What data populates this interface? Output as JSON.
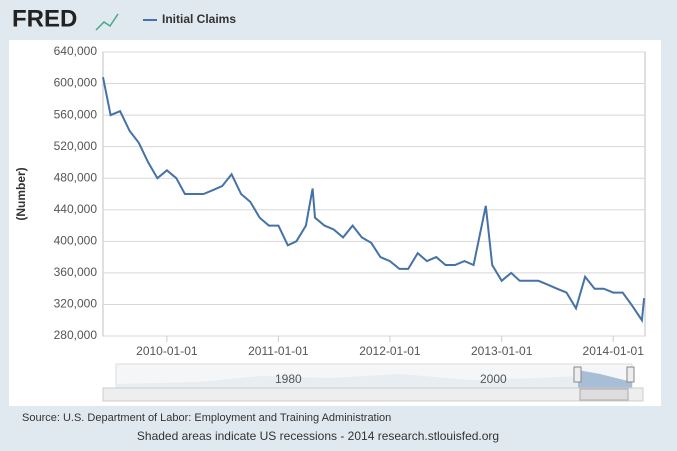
{
  "logo": "FRED",
  "chart_data": {
    "type": "line",
    "title": "Initial Claims",
    "y_label": "(Number)",
    "x": [
      "2009-06-06",
      "2009-07-01",
      "2009-08-01",
      "2009-09-01",
      "2009-10-01",
      "2009-11-01",
      "2009-12-01",
      "2010-01-01",
      "2010-02-01",
      "2010-03-01",
      "2010-04-01",
      "2010-05-01",
      "2010-06-01",
      "2010-07-01",
      "2010-08-01",
      "2010-09-01",
      "2010-10-01",
      "2010-11-01",
      "2010-12-01",
      "2011-01-01",
      "2011-02-01",
      "2011-03-01",
      "2011-04-01",
      "2011-04-23",
      "2011-05-01",
      "2011-06-01",
      "2011-07-01",
      "2011-08-01",
      "2011-09-01",
      "2011-10-01",
      "2011-11-01",
      "2011-12-01",
      "2012-01-01",
      "2012-02-01",
      "2012-03-01",
      "2012-04-01",
      "2012-05-01",
      "2012-06-01",
      "2012-07-01",
      "2012-08-01",
      "2012-09-01",
      "2012-10-01",
      "2012-11-10",
      "2012-12-01",
      "2013-01-01",
      "2013-02-01",
      "2013-03-01",
      "2013-04-01",
      "2013-05-01",
      "2013-06-01",
      "2013-07-01",
      "2013-08-01",
      "2013-09-01",
      "2013-10-01",
      "2013-11-01",
      "2013-12-01",
      "2014-01-01",
      "2014-02-01",
      "2014-03-01",
      "2014-04-05",
      "2014-04-12"
    ],
    "series": [
      {
        "name": "Initial Claims",
        "color": "#4572a7",
        "values": [
          608000,
          560000,
          565000,
          540000,
          525000,
          500000,
          480000,
          490000,
          480000,
          460000,
          460000,
          460000,
          465000,
          470000,
          485000,
          460000,
          450000,
          430000,
          420000,
          420000,
          395000,
          400000,
          420000,
          467000,
          430000,
          420000,
          415000,
          405000,
          420000,
          405000,
          398000,
          380000,
          375000,
          365000,
          365000,
          385000,
          375000,
          380000,
          370000,
          370000,
          375000,
          370000,
          445000,
          370000,
          350000,
          360000,
          350000,
          350000,
          350000,
          345000,
          340000,
          335000,
          315000,
          355000,
          340000,
          340000,
          335000,
          335000,
          320000,
          300000,
          328000
        ]
      }
    ],
    "xlim": [
      "2009-06-06",
      "2014-04-15"
    ],
    "xticks": [
      "2010-01-01",
      "2011-01-01",
      "2012-01-01",
      "2013-01-01",
      "2014-01-01"
    ],
    "ylim": [
      280000,
      640000
    ],
    "yticks": [
      {
        "value": 280000,
        "label": "280,000"
      },
      {
        "value": 320000,
        "label": "320,000"
      },
      {
        "value": 360000,
        "label": "360,000"
      },
      {
        "value": 400000,
        "label": "400,000"
      },
      {
        "value": 440000,
        "label": "440,000"
      },
      {
        "value": 480000,
        "label": "480,000"
      },
      {
        "value": 520000,
        "label": "520,000"
      },
      {
        "value": 560000,
        "label": "560,000"
      },
      {
        "value": 600000,
        "label": "600,000"
      },
      {
        "value": 640000,
        "label": "640,000"
      }
    ],
    "grid": true
  },
  "navigator": {
    "labels": [
      "1980",
      "2000"
    ]
  },
  "source": "Source: U.S. Department of Labor: Employment and Training Administration",
  "footer": "Shaded areas indicate US recessions - 2014 research.stlouisfed.org"
}
